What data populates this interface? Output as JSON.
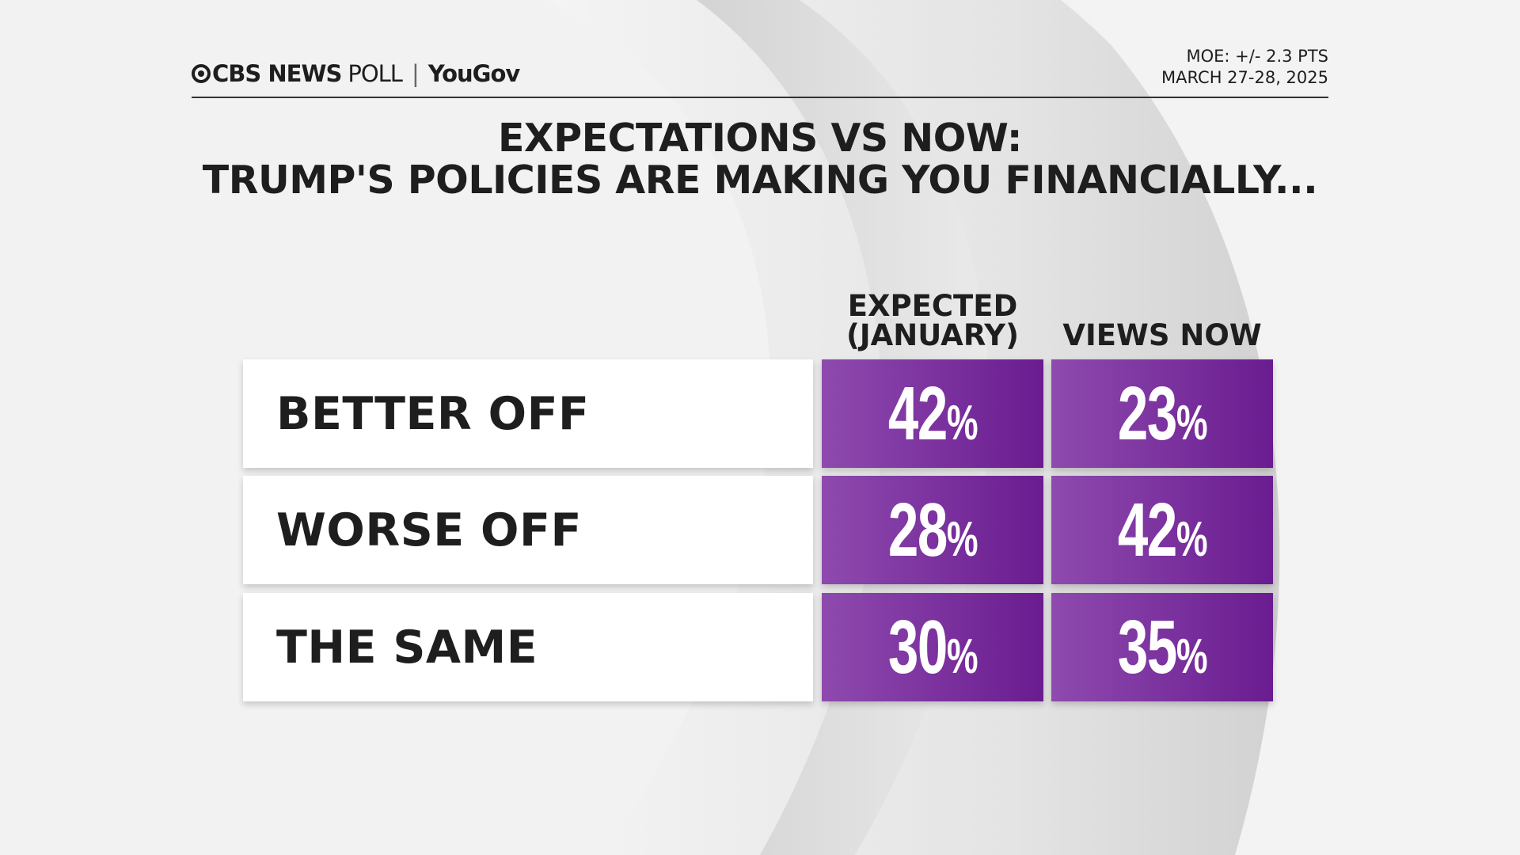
{
  "header": {
    "brand": "CBS NEWS",
    "brand_suffix": "POLL",
    "partner": "YouGov",
    "moe": "MOE: +/- 2.3 PTS",
    "date": "MARCH 27-28, 2025"
  },
  "title": {
    "line1": "EXPECTATIONS VS NOW:",
    "line2": "TRUMP'S POLICIES ARE MAKING YOU FINANCIALLY..."
  },
  "colors": {
    "cell_start": "#8e4aae",
    "cell_end": "#6a1c90",
    "label_bg": "#ffffff"
  },
  "chart_data": {
    "type": "table",
    "columns": [
      {
        "line1": "EXPECTED",
        "line2": "(JANUARY)"
      },
      {
        "line1": "",
        "line2": "VIEWS NOW"
      }
    ],
    "rows": [
      {
        "label": "BETTER OFF",
        "values": [
          "42",
          "23"
        ]
      },
      {
        "label": "WORSE OFF",
        "values": [
          "28",
          "42"
        ]
      },
      {
        "label": "THE SAME",
        "values": [
          "30",
          "35"
        ]
      }
    ],
    "unit": "%"
  }
}
